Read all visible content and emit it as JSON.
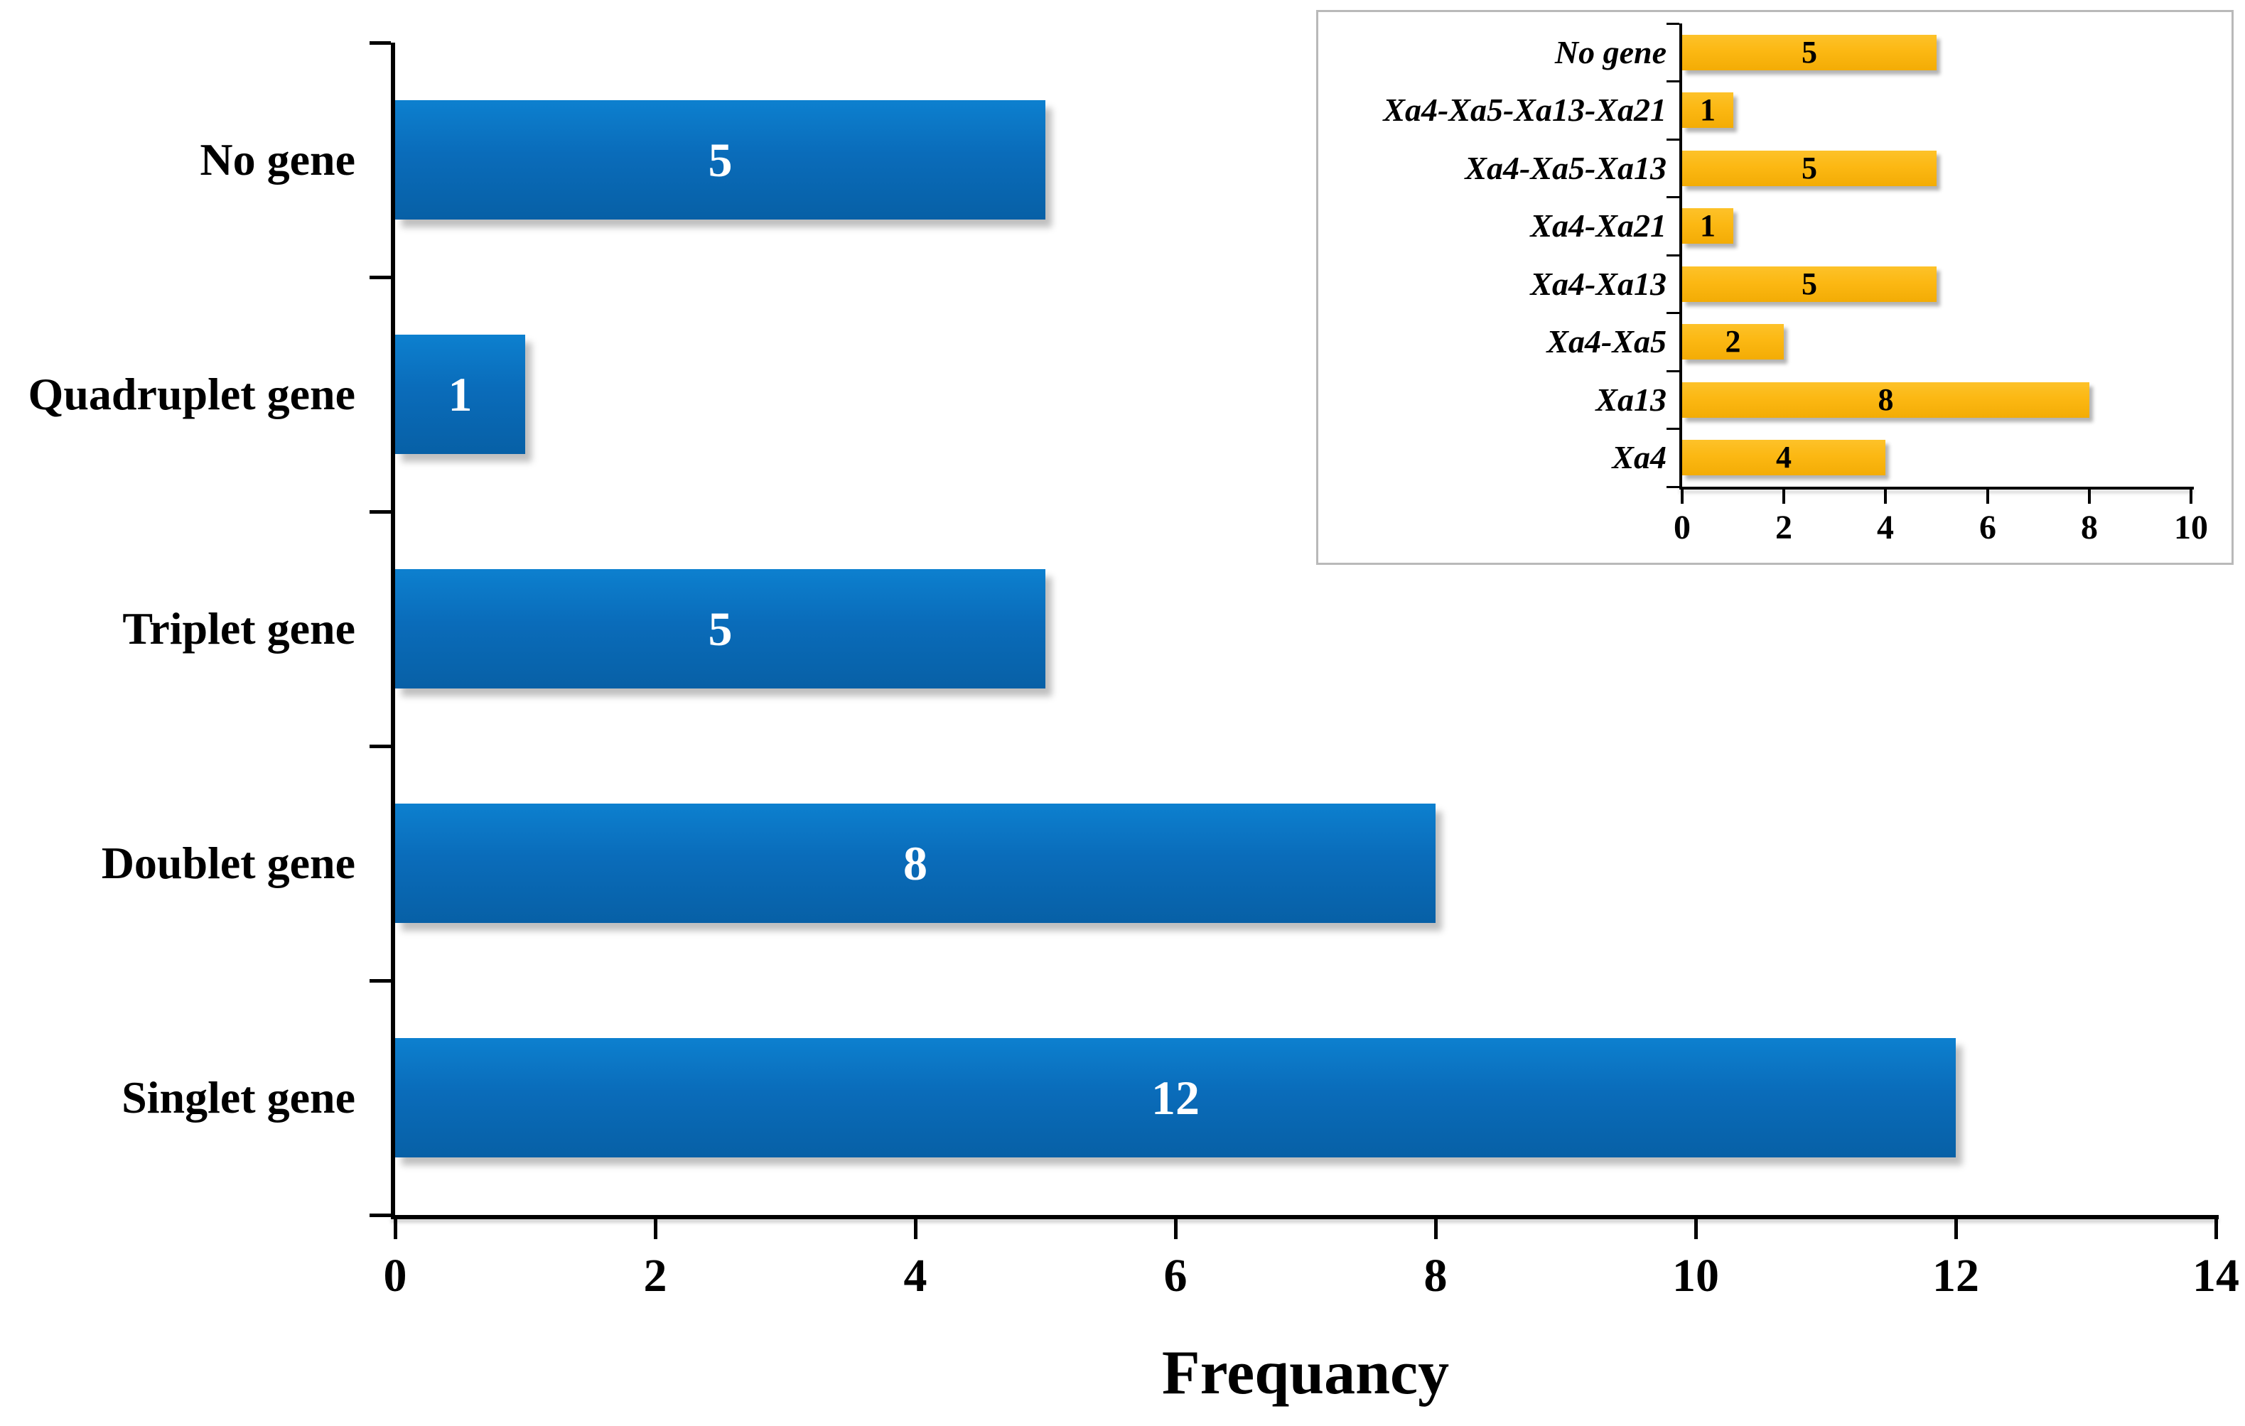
{
  "figure": {
    "background_color": "#ffffff",
    "x_axis_title": "Frequancy"
  },
  "chart_data": [
    {
      "id": "main",
      "type": "bar",
      "orientation": "horizontal",
      "categories": [
        "No gene",
        "Quadruplet gene",
        "Triplet gene",
        "Doublet gene",
        "Singlet gene"
      ],
      "values": [
        5,
        1,
        5,
        8,
        12
      ],
      "xlabel": "Frequancy",
      "ylabel": "",
      "xlim": [
        0,
        14
      ],
      "xticks": [
        0,
        2,
        4,
        6,
        8,
        10,
        12,
        14
      ],
      "grid": "off",
      "legend": "none",
      "bar_gradient": [
        "#0d80cf",
        "#0a6cba",
        "#0760a6"
      ],
      "value_label_color": "#ffffff",
      "axis_color": "#000000"
    },
    {
      "id": "inset",
      "type": "bar",
      "orientation": "horizontal",
      "categories": [
        "No gene",
        "Xa4-Xa5-Xa13-Xa21",
        "Xa4-Xa5-Xa13",
        "Xa4-Xa21",
        "Xa4-Xa13",
        "Xa4-Xa5",
        "Xa13",
        "Xa4"
      ],
      "values": [
        5,
        1,
        5,
        1,
        5,
        2,
        8,
        4
      ],
      "xlabel": "",
      "ylabel": "",
      "xlim": [
        0,
        10
      ],
      "xticks": [
        0,
        2,
        4,
        6,
        8,
        10
      ],
      "grid": "off",
      "legend": "none",
      "bar_gradient": [
        "#fdc22a",
        "#fcb813",
        "#f3ac05"
      ],
      "value_label_color": "#000000",
      "axis_color": "#000000",
      "panel_border_color": "#b9b9b9"
    }
  ]
}
